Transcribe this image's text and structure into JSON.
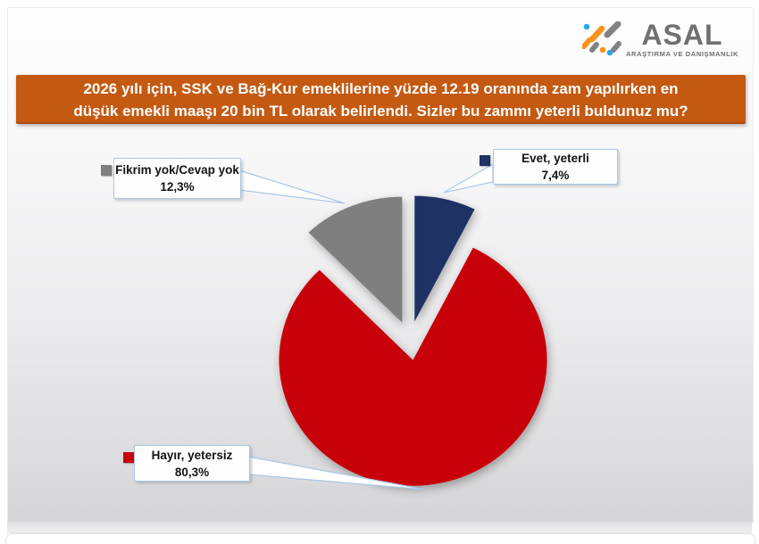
{
  "logo": {
    "name": "ASAL",
    "tagline": "ARAŞTIRMA VE DANIŞMANLIK",
    "icon_colors": {
      "blue": "#29ABE2",
      "orange": "#F7941E",
      "gray": "#808285"
    },
    "text_color": "#6F7073"
  },
  "question_banner": {
    "lines": [
      "2026 yılı için, SSK ve Bağ-Kur emeklilerine yüzde 12.19 oranında zam yapılırken en",
      "düşük emekli maaşı 20 bin TL olarak belirlendi. Sizler bu zammı yeterli buldunuz mu?"
    ],
    "background_color": "#C45911",
    "text_color": "#FFFFFF"
  },
  "chart_data": {
    "type": "pie",
    "title": "",
    "slices": [
      {
        "label": "Evet, yeterli",
        "value": 7.4,
        "display": "7,4%",
        "color": "#1E3263"
      },
      {
        "label": "Hayır, yetersiz",
        "value": 80.3,
        "display": "80,3%",
        "color": "#C8000A"
      },
      {
        "label": "Fikrim yok/Cevap yok",
        "value": 12.3,
        "display": "12,3%",
        "color": "#7F7F7F"
      }
    ],
    "start_angle_deg": 0,
    "direction": "clockwise",
    "exploded": true,
    "labels": "callout boxes with leader lines",
    "value_format": "percent with comma decimal",
    "callout_border_color": "#A9C7E7",
    "callout_fill": "#FFFFFF"
  }
}
